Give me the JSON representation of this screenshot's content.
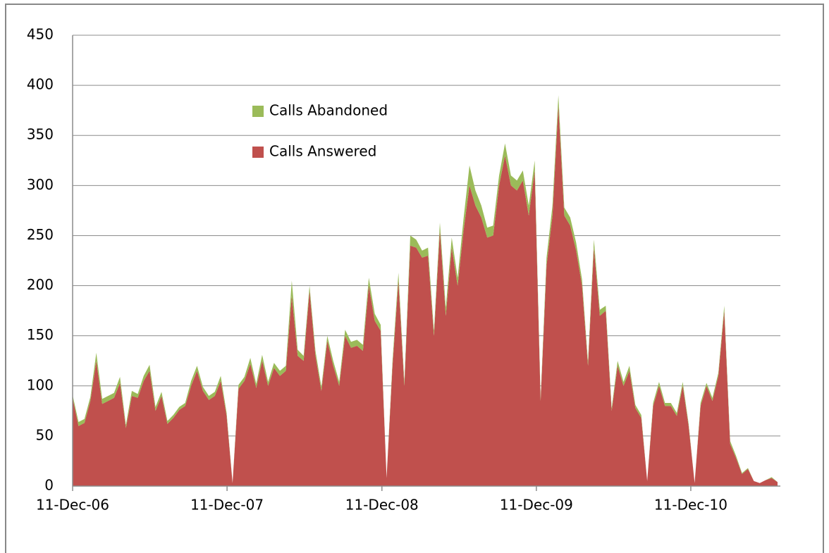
{
  "chart_data": {
    "type": "stacked_area",
    "x": [
      "2006-12-11",
      "2006-12-25",
      "2007-01-08",
      "2007-01-22",
      "2007-02-05",
      "2007-02-19",
      "2007-03-05",
      "2007-03-19",
      "2007-04-02",
      "2007-04-16",
      "2007-04-30",
      "2007-05-14",
      "2007-05-28",
      "2007-06-11",
      "2007-06-25",
      "2007-07-09",
      "2007-07-23",
      "2007-08-06",
      "2007-08-20",
      "2007-09-03",
      "2007-09-17",
      "2007-10-01",
      "2007-10-15",
      "2007-10-29",
      "2007-11-12",
      "2007-11-26",
      "2007-12-10",
      "2007-12-24",
      "2008-01-07",
      "2008-01-21",
      "2008-02-04",
      "2008-02-18",
      "2008-03-03",
      "2008-03-17",
      "2008-03-31",
      "2008-04-14",
      "2008-04-28",
      "2008-05-12",
      "2008-05-26",
      "2008-06-09",
      "2008-06-23",
      "2008-07-07",
      "2008-07-21",
      "2008-08-04",
      "2008-08-18",
      "2008-09-01",
      "2008-09-15",
      "2008-09-29",
      "2008-10-13",
      "2008-10-27",
      "2008-11-10",
      "2008-11-24",
      "2008-12-08",
      "2008-12-22",
      "2009-01-05",
      "2009-01-19",
      "2009-02-02",
      "2009-02-16",
      "2009-03-02",
      "2009-03-16",
      "2009-03-30",
      "2009-04-13",
      "2009-04-27",
      "2009-05-11",
      "2009-05-25",
      "2009-06-08",
      "2009-06-22",
      "2009-07-06",
      "2009-07-20",
      "2009-08-03",
      "2009-08-17",
      "2009-08-31",
      "2009-09-14",
      "2009-09-28",
      "2009-10-12",
      "2009-10-26",
      "2009-11-09",
      "2009-11-23",
      "2009-12-07",
      "2009-12-21",
      "2010-01-04",
      "2010-01-18",
      "2010-02-01",
      "2010-02-15",
      "2010-03-01",
      "2010-03-15",
      "2010-03-29",
      "2010-04-12",
      "2010-04-26",
      "2010-05-10",
      "2010-05-24",
      "2010-06-07",
      "2010-06-21",
      "2010-07-05",
      "2010-07-19",
      "2010-08-02",
      "2010-08-16",
      "2010-08-30",
      "2010-09-13",
      "2010-09-27",
      "2010-10-11",
      "2010-10-25",
      "2010-11-08",
      "2010-11-22",
      "2010-12-06",
      "2010-12-20",
      "2011-01-03",
      "2011-01-17",
      "2011-01-31",
      "2011-02-14",
      "2011-02-28",
      "2011-03-14",
      "2011-03-28",
      "2011-04-11",
      "2011-04-25",
      "2011-05-09",
      "2011-05-23",
      "2011-06-06",
      "2011-06-20",
      "2011-07-04"
    ],
    "series": [
      {
        "name": "Calls Answered",
        "color": "#c0504d",
        "values": [
          88,
          60,
          63,
          85,
          125,
          82,
          85,
          88,
          103,
          58,
          90,
          88,
          105,
          115,
          75,
          90,
          62,
          68,
          76,
          80,
          100,
          115,
          95,
          86,
          90,
          105,
          70,
          3,
          97,
          105,
          122,
          98,
          125,
          100,
          118,
          110,
          115,
          190,
          130,
          125,
          195,
          130,
          95,
          145,
          120,
          100,
          150,
          138,
          140,
          135,
          200,
          165,
          155,
          8,
          120,
          205,
          100,
          240,
          238,
          228,
          230,
          150,
          255,
          170,
          238,
          200,
          255,
          300,
          280,
          268,
          248,
          250,
          300,
          330,
          300,
          295,
          305,
          270,
          315,
          85,
          220,
          270,
          380,
          270,
          260,
          235,
          200,
          120,
          238,
          170,
          175,
          75,
          120,
          100,
          115,
          78,
          68,
          5,
          80,
          100,
          80,
          80,
          70,
          100,
          60,
          3,
          80,
          100,
          85,
          110,
          175,
          42,
          28,
          12,
          17,
          5,
          3,
          6,
          8,
          4
        ]
      },
      {
        "name": "Calls Abandoned",
        "color": "#9bbb59",
        "values": [
          3,
          4,
          4,
          4,
          8,
          5,
          5,
          5,
          6,
          3,
          5,
          4,
          5,
          6,
          4,
          4,
          3,
          3,
          3,
          3,
          5,
          5,
          4,
          4,
          4,
          5,
          3,
          0,
          4,
          4,
          6,
          4,
          6,
          4,
          5,
          5,
          5,
          15,
          6,
          5,
          5,
          5,
          4,
          5,
          5,
          4,
          6,
          6,
          6,
          6,
          8,
          7,
          6,
          0,
          5,
          8,
          4,
          10,
          8,
          7,
          8,
          5,
          8,
          8,
          10,
          8,
          12,
          20,
          15,
          12,
          10,
          10,
          10,
          12,
          10,
          10,
          10,
          10,
          10,
          3,
          8,
          10,
          10,
          8,
          8,
          8,
          6,
          4,
          8,
          6,
          5,
          3,
          5,
          4,
          5,
          3,
          3,
          0,
          3,
          4,
          3,
          3,
          3,
          4,
          2,
          0,
          3,
          3,
          3,
          3,
          5,
          3,
          2,
          1,
          1,
          0,
          0,
          0,
          1,
          0
        ]
      }
    ],
    "xlim": [
      "2006-12-11",
      "2011-07-04"
    ],
    "xticks": [
      {
        "value": "2006-12-11",
        "label": "11-Dec-06"
      },
      {
        "value": "2007-12-11",
        "label": "11-Dec-07"
      },
      {
        "value": "2008-12-11",
        "label": "11-Dec-08"
      },
      {
        "value": "2009-12-11",
        "label": "11-Dec-09"
      },
      {
        "value": "2010-12-11",
        "label": "11-Dec-10"
      }
    ],
    "ylim": [
      0,
      450
    ],
    "yticks": [
      0,
      50,
      100,
      150,
      200,
      250,
      300,
      350,
      400,
      450
    ],
    "grid": true
  }
}
